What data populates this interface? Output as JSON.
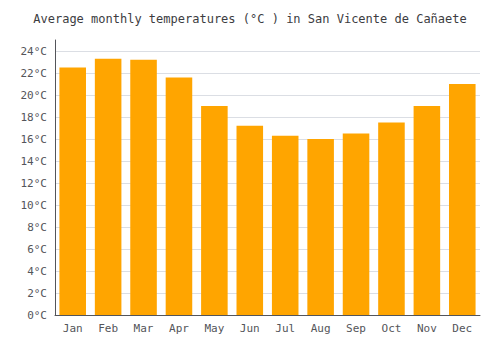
{
  "chart_data": {
    "type": "bar",
    "title": "Average monthly temperatures (°C ) in San Vicente de Cañaete",
    "categories": [
      "Jan",
      "Feb",
      "Mar",
      "Apr",
      "May",
      "Jun",
      "Jul",
      "Aug",
      "Sep",
      "Oct",
      "Nov",
      "Dec"
    ],
    "values": [
      22.5,
      23.3,
      23.2,
      21.6,
      19.0,
      17.2,
      16.3,
      16.0,
      16.5,
      17.5,
      19.0,
      21.0
    ],
    "color": "#FFA500",
    "ylim": [
      0,
      25
    ],
    "yticks": [
      {
        "value": 0,
        "label": "0°C"
      },
      {
        "value": 2,
        "label": "2°C"
      },
      {
        "value": 4,
        "label": "4°C"
      },
      {
        "value": 6,
        "label": "6°C"
      },
      {
        "value": 8,
        "label": "8°C"
      },
      {
        "value": 10,
        "label": "10°C"
      },
      {
        "value": 12,
        "label": "12°C"
      },
      {
        "value": 14,
        "label": "14°C"
      },
      {
        "value": 16,
        "label": "16°C"
      },
      {
        "value": 18,
        "label": "18°C"
      },
      {
        "value": 20,
        "label": "20°C"
      },
      {
        "value": 22,
        "label": "22°C"
      },
      {
        "value": 24,
        "label": "24°C"
      }
    ],
    "grid": true
  }
}
